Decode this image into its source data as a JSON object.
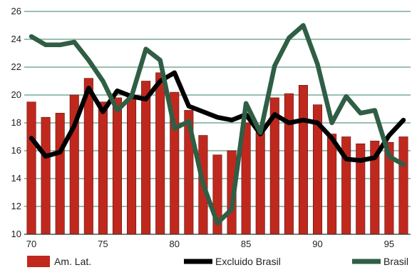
{
  "chart_data": {
    "type": "bar",
    "title": "",
    "xlabel": "",
    "ylabel": "",
    "ylim": [
      10,
      26
    ],
    "yticks": [
      10,
      12,
      14,
      16,
      18,
      20,
      22,
      24,
      26
    ],
    "x_tick_labels": [
      "70",
      "75",
      "80",
      "85",
      "90",
      "95"
    ],
    "x_tick_years": [
      1970,
      1975,
      1980,
      1985,
      1990,
      1995
    ],
    "x": [
      1970,
      1971,
      1972,
      1973,
      1974,
      1975,
      1976,
      1977,
      1978,
      1979,
      1980,
      1981,
      1982,
      1983,
      1984,
      1985,
      1986,
      1987,
      1988,
      1989,
      1990,
      1991,
      1992,
      1993,
      1994,
      1995,
      1996
    ],
    "grid": true,
    "legend_position": "bottom",
    "series": [
      {
        "name": "Am. Lat.",
        "kind": "bar",
        "color": "#c0281e",
        "values": [
          19.5,
          18.4,
          18.7,
          20.0,
          21.2,
          19.5,
          19.8,
          19.9,
          21.0,
          21.6,
          20.2,
          18.9,
          17.1,
          15.7,
          16.0,
          18.0,
          17.3,
          19.8,
          20.1,
          20.7,
          19.3,
          17.2,
          17.0,
          16.5,
          16.7,
          16.6,
          17.0
        ]
      },
      {
        "name": "Excluido Brasil",
        "kind": "line",
        "color": "#000000",
        "values": [
          16.9,
          15.6,
          15.9,
          17.8,
          20.5,
          18.8,
          20.3,
          19.9,
          19.7,
          21.0,
          21.6,
          19.2,
          18.8,
          18.4,
          18.2,
          18.6,
          17.2,
          18.6,
          18.0,
          18.2,
          18.0,
          16.9,
          15.4,
          15.3,
          15.5,
          17.1,
          18.2
        ]
      },
      {
        "name": "Brasil",
        "kind": "line",
        "color": "#2f5e45",
        "values": [
          24.2,
          23.6,
          23.6,
          23.8,
          22.5,
          21.0,
          18.9,
          19.9,
          23.3,
          22.5,
          17.6,
          18.1,
          13.6,
          10.8,
          11.8,
          19.4,
          17.3,
          22.1,
          24.1,
          25.0,
          22.2,
          18.0,
          19.9,
          18.7,
          18.9,
          15.6,
          15.0
        ]
      }
    ]
  }
}
